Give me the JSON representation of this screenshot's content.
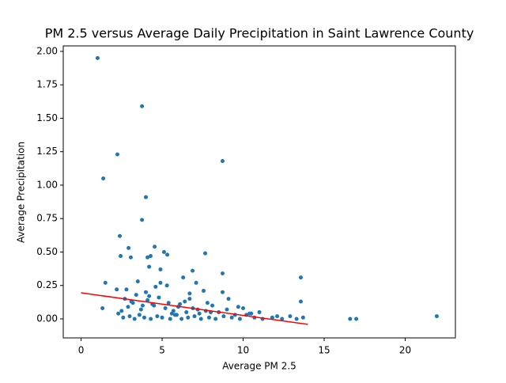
{
  "chart_data": {
    "type": "scatter",
    "title": "PM 2.5 versus Average Daily Precipitation in Saint Lawrence County",
    "x_label": "Average PM 2.5",
    "y_label": "Average Precipitation",
    "xlim": [
      -1.1,
      23.1
    ],
    "ylim": [
      -0.142,
      2.041
    ],
    "xticks": [
      0,
      5,
      10,
      15,
      20
    ],
    "yticks": [
      {
        "value": 0,
        "label": "0.00"
      },
      {
        "value": 0.25,
        "label": "0.25"
      },
      {
        "value": 0.5,
        "label": "0.50"
      },
      {
        "value": 0.75,
        "label": "0.75"
      },
      {
        "value": 1,
        "label": "1.00"
      },
      {
        "value": 1.25,
        "label": "1.25"
      },
      {
        "value": 1.5,
        "label": "1.50"
      },
      {
        "value": 1.75,
        "label": "1.75"
      },
      {
        "value": 2,
        "label": "2.00"
      }
    ],
    "series": [
      {
        "type": "scatter",
        "color": "#1f77b4",
        "x": [
          1.02,
          3.76,
          2.24,
          8.73,
          1.37,
          4.0,
          3.76,
          2.39,
          2.44,
          2.93,
          3.07,
          4.1,
          4.29,
          4.54,
          5.12,
          5.32,
          7.66,
          6.88,
          6.3,
          8.73,
          13.56,
          13.56,
          1.5,
          1.32,
          21.95,
          16.6,
          16.98,
          2.2,
          2.8,
          3.5,
          4.6,
          4.9,
          4.9,
          4.2,
          5.3,
          7.1,
          7.56,
          8.73,
          9.1,
          7.8,
          8.1,
          6.7,
          6.7,
          2.3,
          2.6,
          3.0,
          3.3,
          3.6,
          3.9,
          4.3,
          4.7,
          5.0,
          5.5,
          5.9,
          6.2,
          6.6,
          7.0,
          7.4,
          7.9,
          8.3,
          8.8,
          9.3,
          9.8,
          10.2,
          10.7,
          11.2,
          11.8,
          12.4,
          12.9,
          13.3,
          13.7,
          2.5,
          2.9,
          3.2,
          3.7,
          4.1,
          4.5,
          5.2,
          5.7,
          6.1,
          6.5,
          6.9,
          7.3,
          7.7,
          8.5,
          9.0,
          9.5,
          10.0,
          10.5,
          11.0,
          12.1,
          2.7,
          3.4,
          4.0,
          4.8,
          5.4,
          6.0,
          6.4,
          7.2,
          8.0,
          9.7,
          10.4,
          3.8,
          4.4,
          5.6,
          3.1,
          4.2,
          5.8
        ],
        "y": [
          1.95,
          1.59,
          1.23,
          1.18,
          1.05,
          0.91,
          0.74,
          0.62,
          0.47,
          0.53,
          0.46,
          0.46,
          0.47,
          0.54,
          0.5,
          0.48,
          0.49,
          0.36,
          0.31,
          0.34,
          0.31,
          0.13,
          0.27,
          0.08,
          0.02,
          0,
          0,
          0.22,
          0.22,
          0.28,
          0.24,
          0.27,
          0.37,
          0.39,
          0.25,
          0.27,
          0.21,
          0.2,
          0.15,
          0.12,
          0.1,
          0.15,
          0.19,
          0.04,
          0.01,
          0.02,
          0,
          0.03,
          0.01,
          0,
          0.02,
          0.01,
          0,
          0.03,
          0,
          0.01,
          0.02,
          0,
          0.01,
          0,
          0.02,
          0.01,
          0,
          0.03,
          0.01,
          0,
          0.01,
          0,
          0.02,
          0,
          0.01,
          0.06,
          0.09,
          0.12,
          0.07,
          0.14,
          0.1,
          0.08,
          0.06,
          0.11,
          0.05,
          0.08,
          0.04,
          0.06,
          0.05,
          0.07,
          0.03,
          0.08,
          0.04,
          0.05,
          0.02,
          0.15,
          0.18,
          0.2,
          0.16,
          0.12,
          0.09,
          0.13,
          0.07,
          0.05,
          0.09,
          0.04,
          0.1,
          0.11,
          0.04,
          0.13,
          0.17,
          0.03
        ]
      },
      {
        "type": "line",
        "color": "#ff0000",
        "x": [
          0,
          14
        ],
        "y": [
          0.195,
          -0.041
        ]
      }
    ]
  }
}
